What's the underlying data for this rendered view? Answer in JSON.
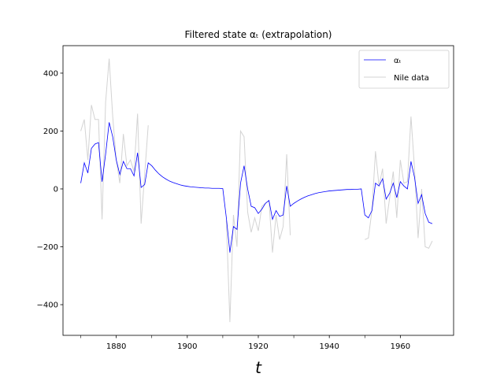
{
  "chart_data": {
    "type": "line",
    "title": "Filtered state αₜ (extrapolation)",
    "x_label": "t",
    "x": [
      1870,
      1871,
      1872,
      1873,
      1874,
      1875,
      1876,
      1877,
      1878,
      1879,
      1880,
      1881,
      1882,
      1883,
      1884,
      1885,
      1886,
      1887,
      1888,
      1889,
      1890,
      1891,
      1892,
      1893,
      1894,
      1895,
      1896,
      1897,
      1898,
      1899,
      1900,
      1901,
      1902,
      1903,
      1904,
      1905,
      1906,
      1907,
      1908,
      1909,
      1910,
      1911,
      1912,
      1913,
      1914,
      1915,
      1916,
      1917,
      1918,
      1919,
      1920,
      1921,
      1922,
      1923,
      1924,
      1925,
      1926,
      1927,
      1928,
      1929,
      1930,
      1931,
      1932,
      1933,
      1934,
      1935,
      1936,
      1937,
      1938,
      1939,
      1940,
      1941,
      1942,
      1943,
      1944,
      1945,
      1946,
      1947,
      1948,
      1949,
      1950,
      1951,
      1952,
      1953,
      1954,
      1955,
      1956,
      1957,
      1958,
      1959,
      1960,
      1961,
      1962,
      1963,
      1964,
      1965,
      1966,
      1967,
      1968,
      1969
    ],
    "series": [
      {
        "name": "αₜ",
        "color": "#0000ff",
        "values": [
          20,
          90,
          55,
          140,
          155,
          160,
          25,
          120,
          230,
          180,
          100,
          50,
          95,
          70,
          70,
          45,
          125,
          5,
          15,
          90,
          80,
          65,
          52,
          42,
          34,
          27,
          22,
          18,
          14,
          11,
          9,
          7,
          6,
          5,
          4,
          3,
          3,
          2,
          2,
          2,
          1,
          -100,
          -220,
          -130,
          -140,
          20,
          80,
          0,
          -60,
          -65,
          -85,
          -70,
          -50,
          -40,
          -105,
          -75,
          -95,
          -90,
          10,
          -60,
          -50,
          -42,
          -35,
          -29,
          -24,
          -20,
          -16,
          -13,
          -11,
          -9,
          -7,
          -6,
          -5,
          -4,
          -3,
          -2,
          -2,
          -1,
          -1,
          0,
          -90,
          -100,
          -75,
          20,
          10,
          35,
          -35,
          -15,
          20,
          -30,
          25,
          10,
          0,
          95,
          40,
          -50,
          -20,
          -85,
          -115,
          -120
        ]
      },
      {
        "name": "Nile data",
        "color": "#d3d3d3",
        "values": [
          200,
          240,
          100,
          290,
          240,
          240,
          -105,
          300,
          450,
          250,
          100,
          20,
          190,
          80,
          100,
          60,
          260,
          -120,
          50,
          220,
          null,
          null,
          null,
          null,
          null,
          null,
          null,
          null,
          null,
          null,
          null,
          null,
          null,
          null,
          null,
          null,
          null,
          null,
          null,
          null,
          null,
          -110,
          -460,
          -90,
          -200,
          200,
          180,
          -80,
          -150,
          -100,
          -145,
          -60,
          -50,
          -40,
          -220,
          -90,
          -175,
          -130,
          120,
          -160,
          null,
          null,
          null,
          null,
          null,
          null,
          null,
          null,
          null,
          null,
          null,
          null,
          null,
          null,
          null,
          null,
          null,
          null,
          null,
          null,
          -175,
          -170,
          -75,
          130,
          10,
          70,
          -120,
          -30,
          60,
          -100,
          100,
          20,
          25,
          250,
          70,
          -170,
          0,
          -200,
          -205,
          -180
        ]
      }
    ],
    "xlim": [
      1865,
      1975
    ],
    "xticks": [
      1880,
      1900,
      1920,
      1940,
      1960
    ],
    "x_minor_ticks": [
      1870,
      1890,
      1910,
      1930,
      1950
    ],
    "ylim": [
      -506,
      495
    ],
    "yticks": [
      {
        "value": -400,
        "label": "−400"
      },
      {
        "value": -200,
        "label": "−200"
      },
      0,
      200,
      400
    ],
    "legend": "upper right"
  }
}
